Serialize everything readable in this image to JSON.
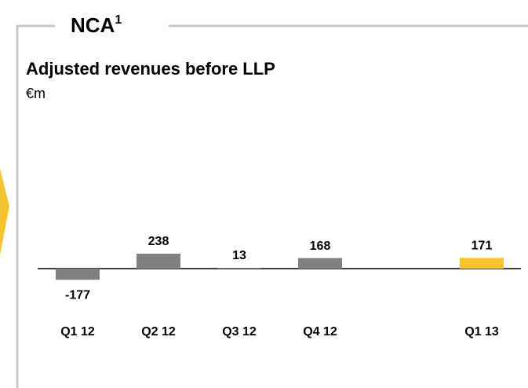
{
  "chart_data": {
    "type": "bar",
    "panel_title": "NCA",
    "panel_title_footnote": "1",
    "title": "Adjusted revenues before LLP",
    "subtitle": "€m",
    "categories": [
      "Q1 12",
      "Q2 12",
      "Q3 12",
      "Q4 12",
      "Q1 13"
    ],
    "values": [
      -177,
      238,
      13,
      168,
      171
    ],
    "colors": [
      "#808080",
      "#808080",
      "#808080",
      "#808080",
      "#f5c531"
    ]
  }
}
